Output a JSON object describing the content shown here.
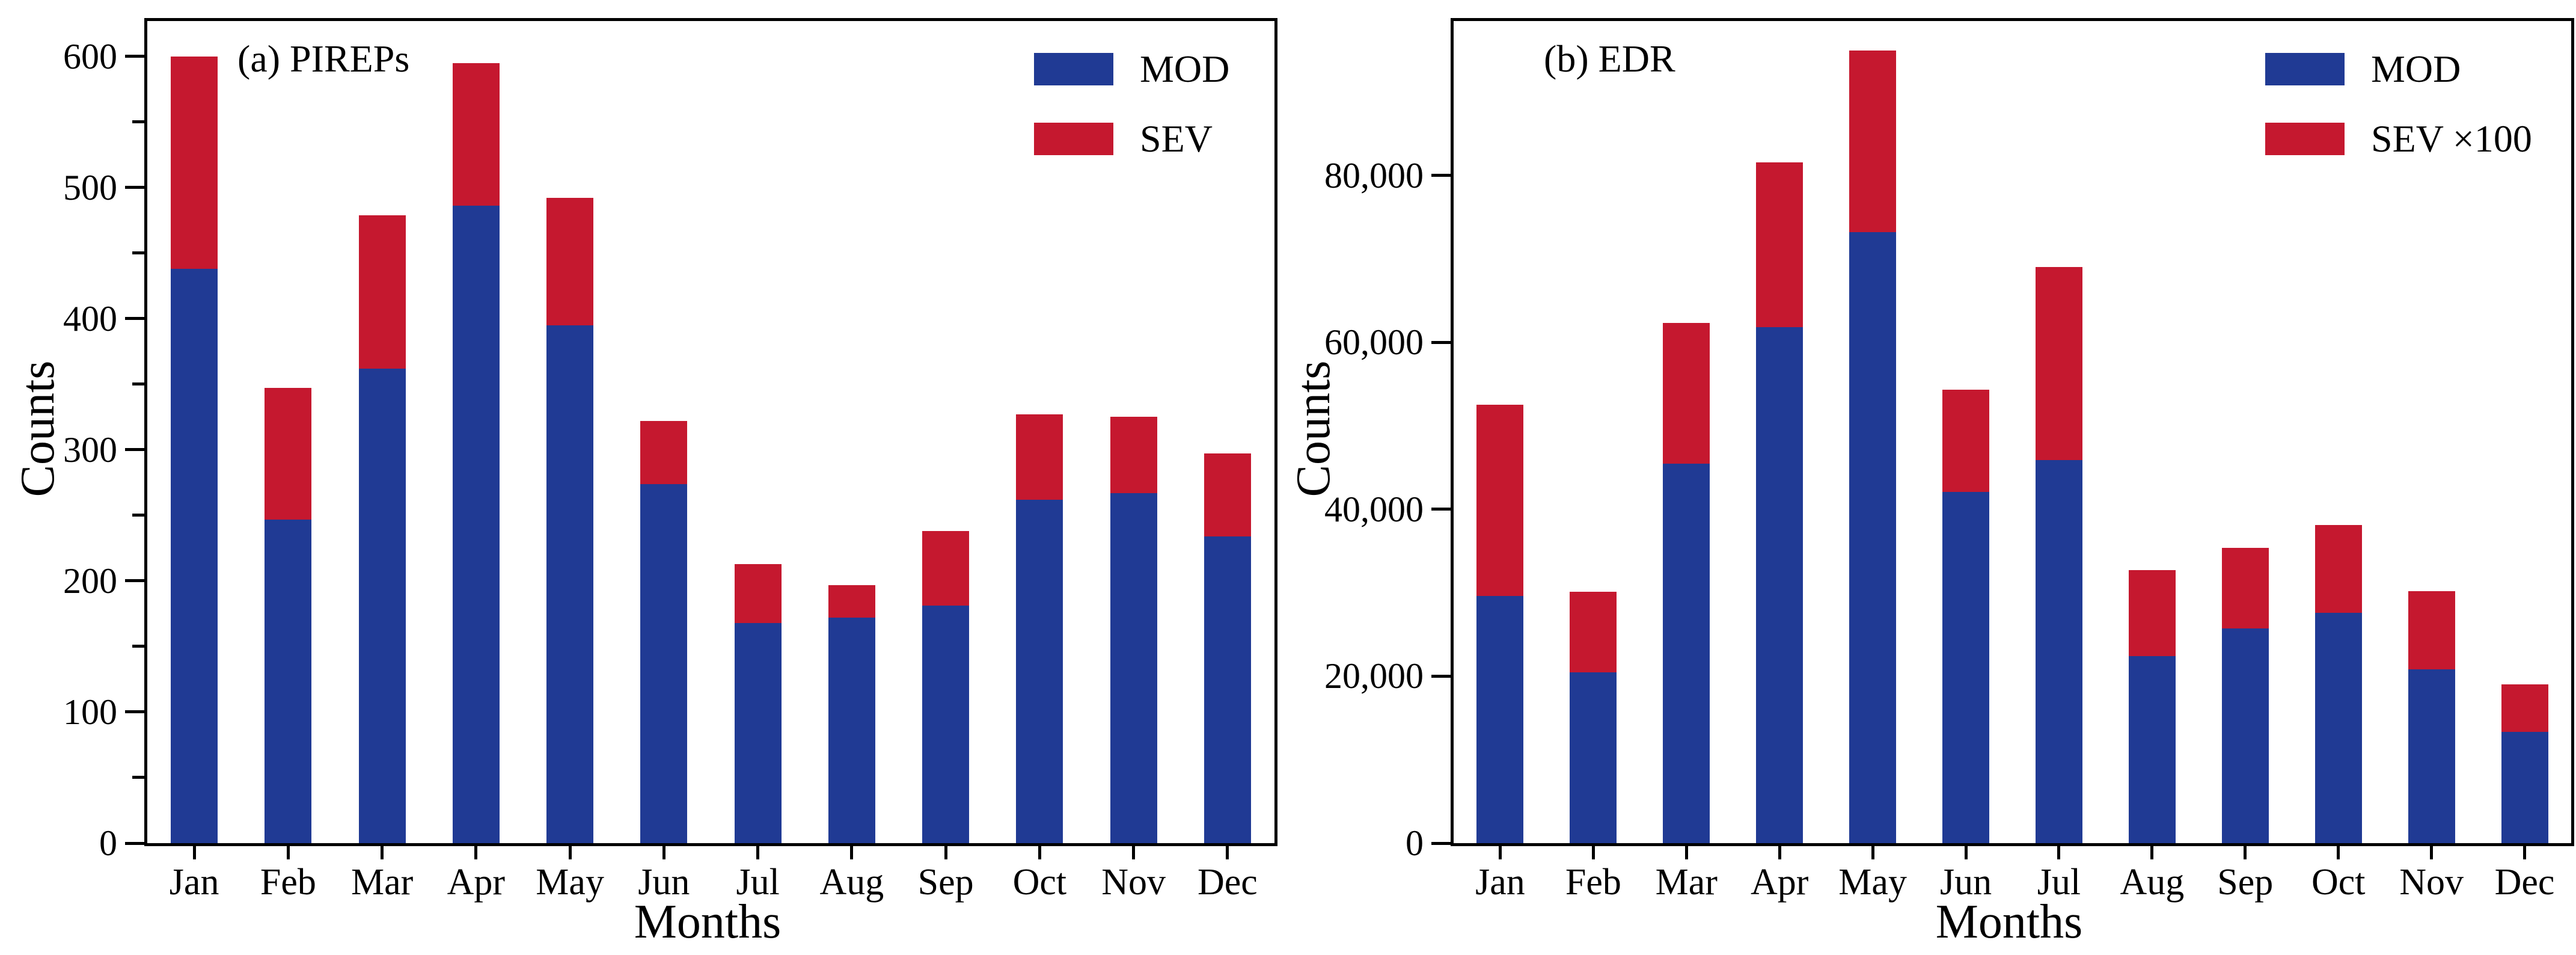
{
  "chart_data": [
    {
      "type": "bar",
      "stacked": true,
      "title": "(a) PIREPs",
      "xlabel": "Months",
      "ylabel": "Counts",
      "categories": [
        "Jan",
        "Feb",
        "Mar",
        "Apr",
        "May",
        "Jun",
        "Jul",
        "Aug",
        "Sep",
        "Oct",
        "Nov",
        "Dec"
      ],
      "series": [
        {
          "name": "MOD",
          "color": "#203a94",
          "values": [
            438,
            247,
            362,
            486,
            395,
            274,
            168,
            172,
            181,
            262,
            267,
            234
          ]
        },
        {
          "name": "SEV",
          "color": "#c5182f",
          "values": [
            162,
            100,
            117,
            109,
            97,
            48,
            45,
            25,
            57,
            65,
            58,
            63
          ]
        }
      ],
      "totals": [
        600,
        347,
        479,
        595,
        492,
        322,
        213,
        197,
        238,
        327,
        325,
        297
      ],
      "ylim": [
        0,
        627
      ],
      "yticks": [
        0,
        100,
        200,
        300,
        400,
        500,
        600
      ],
      "ytick_labels": [
        "0",
        "100",
        "200",
        "300",
        "400",
        "500",
        "600"
      ],
      "yminor_step": 50,
      "grid": false,
      "legend_position": "top-right"
    },
    {
      "type": "bar",
      "stacked": true,
      "title": "(b) EDR",
      "xlabel": "Months",
      "ylabel": "Counts",
      "categories": [
        "Jan",
        "Feb",
        "Mar",
        "Apr",
        "May",
        "Jun",
        "Jul",
        "Aug",
        "Sep",
        "Oct",
        "Nov",
        "Dec"
      ],
      "series": [
        {
          "name": "MOD",
          "color": "#203a94",
          "values": [
            29600,
            20500,
            45500,
            61800,
            73200,
            42100,
            45900,
            22400,
            25700,
            27600,
            20800,
            13300
          ]
        },
        {
          "name": "SEV ×100",
          "color": "#c5182f",
          "values": [
            22900,
            9600,
            16800,
            19800,
            21800,
            12200,
            23100,
            10300,
            9700,
            10500,
            9400,
            5700
          ]
        }
      ],
      "totals": [
        52500,
        30100,
        62300,
        81600,
        95000,
        54300,
        69000,
        32700,
        35400,
        38100,
        30200,
        19000
      ],
      "ylim": [
        0,
        98500
      ],
      "yticks": [
        0,
        20000,
        40000,
        60000,
        80000
      ],
      "ytick_labels": [
        "0",
        "20,000",
        "40,000",
        "60,000",
        "80,000"
      ],
      "yminor_step": 0,
      "grid": false,
      "legend_position": "top-right"
    }
  ]
}
